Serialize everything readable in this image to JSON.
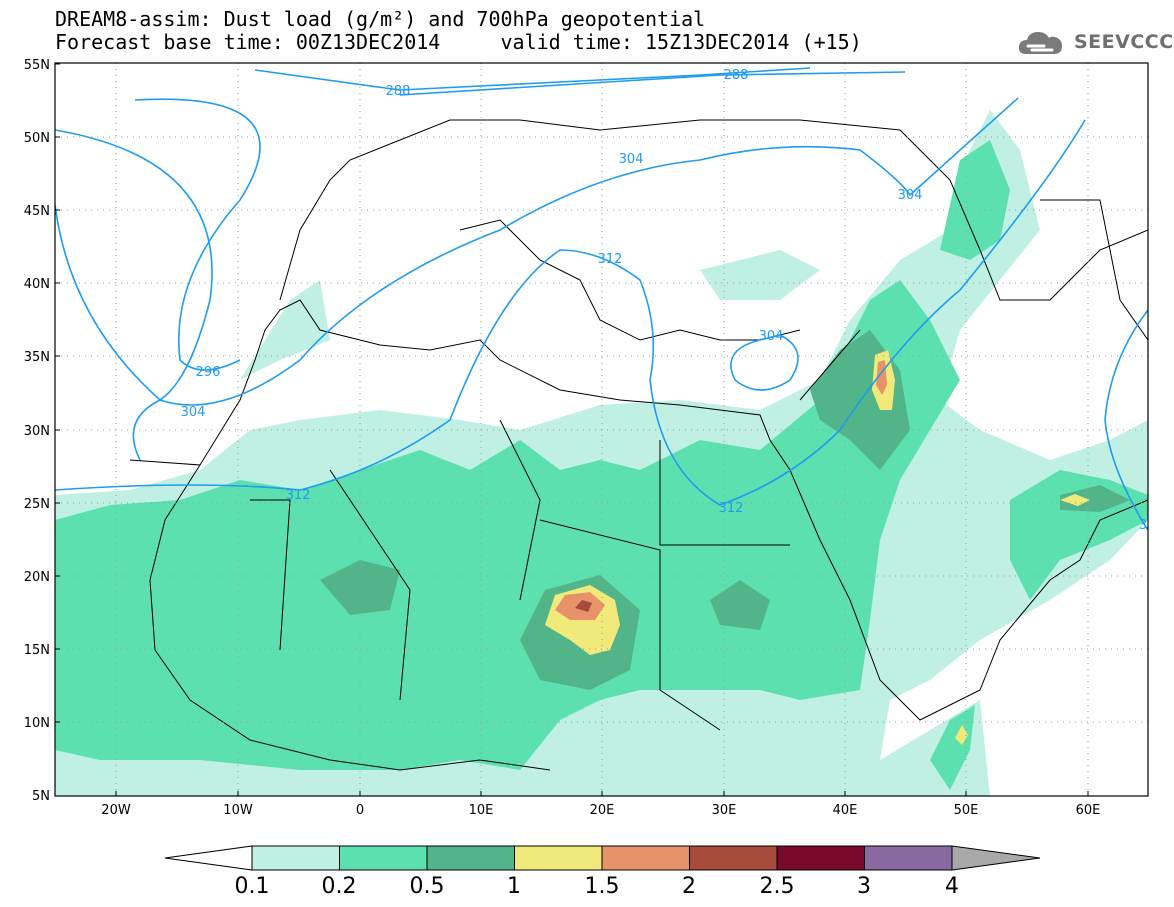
{
  "title": {
    "line1": "DREAM8-assim: Dust load (g/m²) and 700hPa geopotential",
    "line2": "Forecast base time: 00Z13DEC2014     valid time: 15Z13DEC2014 (+15)"
  },
  "logo": {
    "text": "SEEVCCC",
    "icon": "cloud-icon"
  },
  "map": {
    "lat_labels": [
      "55N",
      "50N",
      "45N",
      "40N",
      "35N",
      "30N",
      "25N",
      "20N",
      "15N",
      "10N",
      "5N"
    ],
    "lon_labels": [
      "20W",
      "10W",
      "0",
      "10E",
      "20E",
      "30E",
      "40E",
      "50E",
      "60E"
    ],
    "contour_labels": [
      "288",
      "288",
      "304",
      "304",
      "296",
      "304",
      "312",
      "304",
      "312",
      "312",
      "3"
    ],
    "land_color": "#ffffff",
    "coast_color": "#000000",
    "contour_color": "#1f9cf0"
  },
  "colorbar": {
    "levels": [
      "0.1",
      "0.2",
      "0.5",
      "1",
      "1.5",
      "2",
      "2.5",
      "3",
      "4"
    ],
    "colors": [
      "#c0f0e4",
      "#5ce0b0",
      "#52b58a",
      "#f1e97a",
      "#e8926a",
      "#a64a3b",
      "#7a0a2c",
      "#8a68a0",
      "#a9a9a9"
    ]
  }
}
